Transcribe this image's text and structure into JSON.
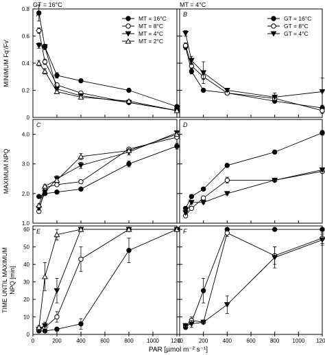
{
  "figure": {
    "column_titles": [
      "GT = 16°C",
      "MT = 4°C"
    ],
    "x_axis_label": "PAR [µmol m⁻² s⁻¹]",
    "x_ticks": [
      0,
      200,
      400,
      600,
      800,
      1000,
      1200
    ],
    "row_labels": [
      "MINIMUM Fq'/Fv'",
      "MAXIMUM NPQ",
      "TIME UNTIL MAXIMUM NPQ [min]"
    ]
  },
  "chart_data": [
    {
      "type": "line",
      "panel": "A",
      "xlim": [
        0,
        1200
      ],
      "ylim": [
        0,
        0.8
      ],
      "yticks": [
        0,
        0.2,
        0.4,
        0.6,
        0.8
      ],
      "legend": "top-right",
      "series": [
        {
          "name": "MT = 16°C",
          "marker": "filled-circle",
          "x": [
            50,
            100,
            200,
            400,
            800,
            1200
          ],
          "y": [
            0.77,
            0.52,
            0.31,
            0.27,
            0.2,
            0.08
          ],
          "err": [
            0.06,
            0.02,
            0.02,
            0.01,
            0.01,
            0.01
          ]
        },
        {
          "name": "MT = 8°C",
          "marker": "open-circle",
          "x": [
            50,
            100,
            200,
            400,
            800,
            1200
          ],
          "y": [
            0.64,
            0.41,
            0.24,
            0.18,
            0.11,
            0.05
          ],
          "err": [
            0.02,
            0.02,
            0.01,
            0.01,
            0.01,
            0.01
          ]
        },
        {
          "name": "MT = 4°C",
          "marker": "filled-triangle-down",
          "x": [
            50,
            100,
            200,
            400,
            800,
            1200
          ],
          "y": [
            0.53,
            0.52,
            0.21,
            0.16,
            0.11,
            0.05
          ],
          "err": [
            0.02,
            0.02,
            0.01,
            0.01,
            0.01,
            0.01
          ]
        },
        {
          "name": "MT = 2°C",
          "marker": "open-triangle-up",
          "x": [
            50,
            100,
            200,
            400,
            800,
            1200
          ],
          "y": [
            0.4,
            0.34,
            0.19,
            0.15,
            0.12,
            0.05
          ],
          "err": [
            0.02,
            0.02,
            0.01,
            0.01,
            0.01,
            0.01
          ]
        }
      ]
    },
    {
      "type": "line",
      "panel": "B",
      "xlim": [
        0,
        1200
      ],
      "ylim": [
        0,
        0.8
      ],
      "yticks": [
        0,
        0.2,
        0.4,
        0.6,
        0.8
      ],
      "legend": "top-right",
      "series": [
        {
          "name": "GT = 16°C",
          "marker": "filled-circle",
          "x": [
            50,
            100,
            200,
            400,
            800,
            1200
          ],
          "y": [
            0.52,
            0.34,
            0.2,
            0.18,
            0.12,
            0.07
          ],
          "err": [
            0.02,
            0.02,
            0.01,
            0.01,
            0.01,
            0.01
          ]
        },
        {
          "name": "GT = 8°C",
          "marker": "open-circle",
          "x": [
            50,
            100,
            200,
            400,
            800,
            1200
          ],
          "y": [
            0.53,
            0.38,
            0.3,
            0.18,
            0.14,
            0.05
          ],
          "err": [
            0.02,
            0.02,
            0.02,
            0.01,
            0.01,
            0.02
          ]
        },
        {
          "name": "GT = 4°C",
          "marker": "filled-triangle-down",
          "x": [
            50,
            100,
            200,
            400,
            800,
            1200
          ],
          "y": [
            0.62,
            0.42,
            0.33,
            0.2,
            0.15,
            0.19
          ],
          "err": [
            0.02,
            0.03,
            0.08,
            0.01,
            0.03,
            0.1
          ]
        }
      ]
    },
    {
      "type": "line",
      "panel": "C",
      "xlim": [
        0,
        1200
      ],
      "ylim": [
        1,
        4.5
      ],
      "yticks": [
        1.0,
        2.0,
        3.0,
        4.0
      ],
      "series": [
        {
          "name": "MT = 16°C",
          "marker": "filled-circle",
          "x": [
            50,
            100,
            200,
            400,
            800,
            1200
          ],
          "y": [
            1.9,
            2.0,
            2.05,
            2.15,
            3.0,
            3.6
          ],
          "err": [
            0.05,
            0.05,
            0.05,
            0.05,
            0.1,
            0.1
          ]
        },
        {
          "name": "MT = 8°C",
          "marker": "open-circle",
          "x": [
            50,
            100,
            200,
            400,
            800,
            1200
          ],
          "y": [
            1.4,
            2.2,
            2.3,
            2.4,
            3.5,
            3.9
          ],
          "err": [
            0.05,
            0.05,
            0.05,
            0.05,
            0.05,
            0.05
          ]
        },
        {
          "name": "MT = 4°C",
          "marker": "filled-triangle-down",
          "x": [
            50,
            100,
            200,
            400,
            800,
            1200
          ],
          "y": [
            1.5,
            2.05,
            2.5,
            2.95,
            3.4,
            4.05
          ],
          "err": [
            0.05,
            0.05,
            0.1,
            0.1,
            0.1,
            0.05
          ]
        },
        {
          "name": "MT = 2°C",
          "marker": "open-triangle-up",
          "x": [
            50,
            100,
            200,
            400,
            800,
            1200
          ],
          "y": [
            1.6,
            2.25,
            2.45,
            3.25,
            3.45,
            4.0
          ],
          "err": [
            0.05,
            0.05,
            0.05,
            0.1,
            0.05,
            0.05
          ]
        }
      ]
    },
    {
      "type": "line",
      "panel": "D",
      "xlim": [
        0,
        1200
      ],
      "ylim": [
        1,
        4.5
      ],
      "yticks": [
        1.0,
        2.0,
        3.0,
        4.0
      ],
      "series": [
        {
          "name": "GT = 16°C",
          "marker": "filled-circle",
          "x": [
            50,
            100,
            200,
            400,
            800,
            1200
          ],
          "y": [
            1.5,
            1.9,
            2.15,
            2.95,
            3.4,
            4.05
          ],
          "err": [
            0.05,
            0.05,
            0.05,
            0.05,
            0.05,
            0.08
          ]
        },
        {
          "name": "GT = 8°C",
          "marker": "open-circle",
          "x": [
            50,
            100,
            200,
            400,
            800,
            1200
          ],
          "y": [
            1.25,
            1.5,
            1.85,
            2.45,
            2.45,
            2.75
          ],
          "err": [
            0.05,
            0.05,
            0.05,
            0.1,
            0.05,
            0.05
          ]
        },
        {
          "name": "GT = 4°C",
          "marker": "filled-triangle-down",
          "x": [
            50,
            100,
            200,
            400,
            800,
            1200
          ],
          "y": [
            1.35,
            1.7,
            1.7,
            2.0,
            2.45,
            2.8
          ],
          "err": [
            0.05,
            0.05,
            0.05,
            0.05,
            0.05,
            0.05
          ]
        }
      ]
    },
    {
      "type": "line",
      "panel": "E",
      "xlim": [
        0,
        1200
      ],
      "ylim": [
        0,
        62
      ],
      "yticks": [
        0,
        10,
        20,
        30,
        40,
        50,
        60
      ],
      "series": [
        {
          "name": "MT = 16°C",
          "marker": "filled-circle",
          "x": [
            50,
            100,
            200,
            400,
            800,
            1200
          ],
          "y": [
            2,
            2,
            3,
            6,
            48,
            60
          ],
          "err": [
            1,
            1,
            1,
            3,
            7,
            0
          ]
        },
        {
          "name": "MT = 8°C",
          "marker": "open-circle",
          "x": [
            50,
            100,
            200,
            400,
            800,
            1200
          ],
          "y": [
            3,
            4,
            10,
            43,
            60,
            60
          ],
          "err": [
            1,
            1,
            3,
            7,
            0,
            0
          ]
        },
        {
          "name": "MT = 4°C",
          "marker": "filled-triangle-down",
          "x": [
            50,
            100,
            200,
            400,
            800,
            1200
          ],
          "y": [
            3,
            5,
            25,
            60,
            60,
            60
          ],
          "err": [
            1,
            2,
            7,
            0,
            0,
            0
          ]
        },
        {
          "name": "MT = 2°C",
          "marker": "open-triangle-up",
          "x": [
            50,
            100,
            200,
            400,
            800,
            1200
          ],
          "y": [
            4,
            33,
            57,
            60,
            60,
            60
          ],
          "err": [
            1,
            8,
            3,
            0,
            0,
            0
          ]
        }
      ]
    },
    {
      "type": "line",
      "panel": "F",
      "xlim": [
        0,
        1200
      ],
      "ylim": [
        0,
        62
      ],
      "yticks": [
        0,
        10,
        20,
        30,
        40,
        50,
        60
      ],
      "series": [
        {
          "name": "GT = 16°C",
          "marker": "filled-circle",
          "x": [
            50,
            100,
            200,
            400,
            800,
            1200
          ],
          "y": [
            4,
            7,
            25,
            60,
            60,
            60
          ],
          "err": [
            1,
            1,
            7,
            0,
            0,
            0
          ]
        },
        {
          "name": "GT = 8°C",
          "marker": "open-circle",
          "x": [
            50,
            100,
            200,
            400,
            800,
            1200
          ],
          "y": [
            5,
            8,
            7,
            58,
            45,
            55
          ],
          "err": [
            1,
            2,
            1,
            2,
            5,
            3
          ]
        },
        {
          "name": "GT = 4°C",
          "marker": "filled-triangle-down",
          "x": [
            50,
            100,
            200,
            400,
            800,
            1200
          ],
          "y": [
            5,
            6,
            7,
            17,
            44,
            54
          ],
          "err": [
            1,
            2,
            1,
            5,
            6,
            3
          ]
        }
      ]
    }
  ]
}
